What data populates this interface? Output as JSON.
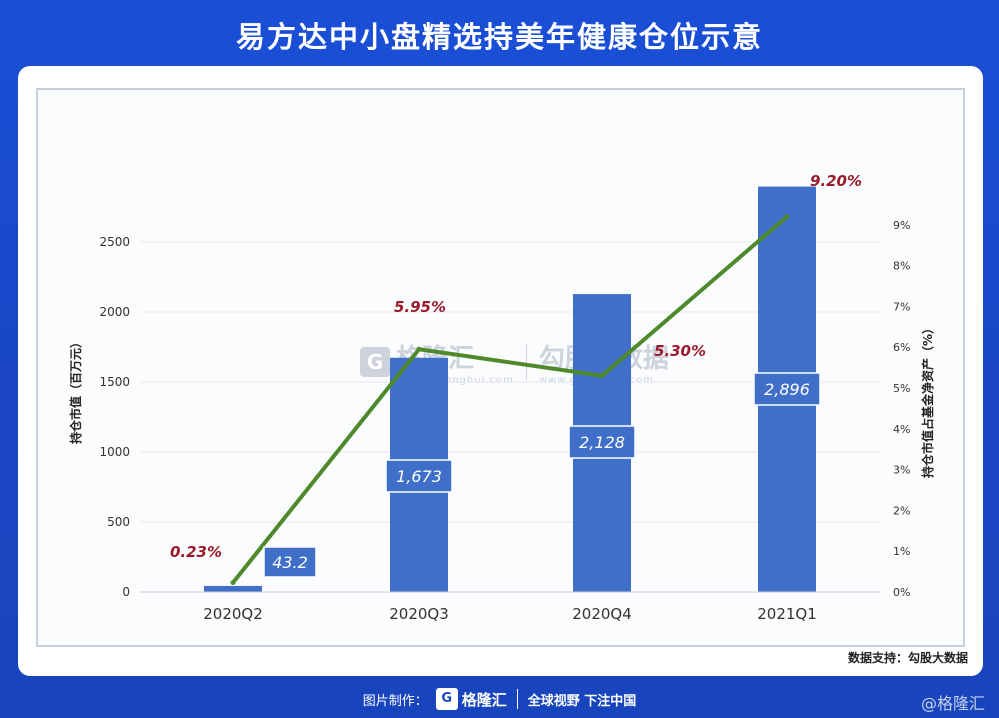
{
  "title": "易方达中小盘精选持美年健康仓位示意",
  "source_text": "数据支持：勾股大数据",
  "watermark": {
    "logo_letter": "G",
    "brand": "格隆汇",
    "brand_url": "www.gelonghui.com",
    "data_brand": "勾股大数据",
    "data_url": "www.gogudata.com"
  },
  "footer": {
    "made_by": "图片制作：",
    "logo_letter": "G",
    "brand": "格隆汇",
    "slogan": "全球视野 下注中国"
  },
  "corner_mark": "@格隆汇",
  "colors": {
    "bar": "#3f6fc8",
    "line": "#4e8a2c",
    "pct_label": "#9b1b2a",
    "background": "#1a45c4"
  },
  "chart_data": {
    "type": "bar",
    "categories": [
      "2020Q2",
      "2020Q3",
      "2020Q4",
      "2021Q1"
    ],
    "series": [
      {
        "name": "持仓市值（百万元）",
        "type": "bar",
        "axis": "left",
        "values": [
          43.2,
          1673,
          2128,
          2896
        ],
        "labels": [
          "43.2",
          "1,673",
          "2,128",
          "2,896"
        ]
      },
      {
        "name": "持仓市值占基金净资产（%）",
        "type": "line",
        "axis": "right",
        "values": [
          0.23,
          5.95,
          5.3,
          9.2
        ],
        "labels": [
          "0.23%",
          "5.95%",
          "5.30%",
          "9.20%"
        ]
      }
    ],
    "ylabel": "持仓市值（百万元）",
    "y2label": "持仓市值占基金净资产（%）",
    "ylim": [
      0,
      2900
    ],
    "y2lim": [
      0,
      9.95
    ],
    "yticks": [
      "0",
      "500",
      "1000",
      "1500",
      "2000",
      "2500"
    ],
    "y2ticks": [
      "0%",
      "1%",
      "2%",
      "3%",
      "4%",
      "5%",
      "6%",
      "7%",
      "8%",
      "9%"
    ],
    "grid": true
  }
}
